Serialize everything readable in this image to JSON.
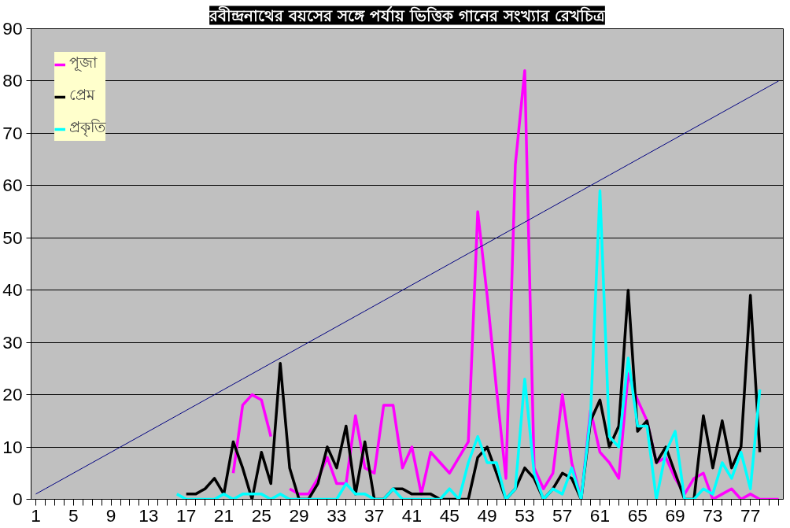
{
  "chart_data": {
    "type": "line",
    "title": "রবীন্দ্রনাথের বয়সের সঙ্গে পর্যায় ভিত্তিক গানের সংখ্যার রেখচিত্র",
    "categories": [
      "1",
      null,
      null,
      null,
      "5",
      null,
      null,
      null,
      "9",
      null,
      null,
      null,
      "13",
      null,
      null,
      null,
      "17",
      null,
      null,
      null,
      "21",
      null,
      null,
      null,
      "25",
      null,
      null,
      null,
      "29",
      null,
      null,
      null,
      "33",
      null,
      null,
      null,
      "37",
      null,
      null,
      null,
      "41",
      null,
      null,
      null,
      "45",
      null,
      null,
      null,
      "49",
      null,
      null,
      null,
      "53",
      null,
      null,
      null,
      "57",
      null,
      null,
      null,
      "61",
      null,
      null,
      null,
      "65",
      null,
      null,
      null,
      "69",
      null,
      null,
      null,
      "73",
      null,
      null,
      null,
      "77",
      null,
      null,
      null
    ],
    "series": [
      {
        "name": "পূজা",
        "color": "#ff00ff",
        "values": [
          null,
          null,
          null,
          null,
          null,
          null,
          null,
          null,
          null,
          null,
          null,
          null,
          null,
          null,
          null,
          null,
          null,
          null,
          null,
          null,
          null,
          5,
          18,
          20,
          19,
          12,
          null,
          2,
          1,
          1,
          4,
          8,
          3,
          3,
          16,
          6,
          5,
          18,
          18,
          6,
          10,
          1,
          9,
          7,
          5,
          8,
          11,
          55,
          39,
          21,
          4,
          64,
          82,
          6,
          2,
          5,
          20,
          7,
          0,
          17,
          9,
          7,
          4,
          24,
          19,
          15,
          7,
          8,
          4,
          1,
          4,
          5,
          0,
          1,
          2,
          0,
          1,
          0,
          0,
          0
        ]
      },
      {
        "name": "প্রেম",
        "color": "#000000",
        "values": [
          null,
          null,
          null,
          null,
          null,
          null,
          null,
          null,
          null,
          null,
          null,
          null,
          null,
          null,
          null,
          null,
          1,
          1,
          2,
          4,
          1,
          11,
          6,
          0,
          9,
          3,
          26,
          6,
          0,
          0,
          3,
          10,
          6,
          14,
          1,
          11,
          0,
          0,
          2,
          2,
          1,
          1,
          1,
          0,
          0,
          0,
          0,
          8,
          10,
          5,
          0,
          2,
          6,
          4,
          0,
          2,
          5,
          4,
          0,
          15,
          19,
          10,
          14,
          40,
          13,
          15,
          7,
          10,
          5,
          0,
          0,
          16,
          6,
          15,
          6,
          10,
          39,
          9,
          null,
          null
        ]
      },
      {
        "name": "প্রকৃতি",
        "color": "#00ffff",
        "values": [
          null,
          null,
          null,
          null,
          null,
          null,
          null,
          null,
          null,
          null,
          null,
          null,
          null,
          null,
          null,
          1,
          0,
          0,
          0,
          0,
          1,
          0,
          1,
          1,
          1,
          0,
          1,
          0,
          0,
          0,
          0,
          0,
          0,
          3,
          1,
          1,
          0,
          0,
          2,
          0,
          0,
          0,
          0,
          0,
          2,
          0,
          7,
          12,
          7,
          7,
          0,
          2,
          23,
          5,
          0,
          2,
          1,
          6,
          0,
          16,
          59,
          12,
          10,
          27,
          14,
          14,
          0,
          9,
          13,
          0,
          0,
          2,
          1,
          7,
          4,
          9,
          2,
          21,
          null,
          null
        ]
      },
      {
        "color": "#000080",
        "values": [
          1,
          2,
          3,
          4,
          5,
          6,
          7,
          8,
          9,
          10,
          11,
          12,
          13,
          14,
          15,
          16,
          17,
          18,
          19,
          20,
          21,
          22,
          23,
          24,
          25,
          26,
          27,
          28,
          29,
          30,
          31,
          32,
          33,
          34,
          35,
          36,
          37,
          38,
          39,
          40,
          41,
          42,
          43,
          44,
          45,
          46,
          47,
          48,
          49,
          50,
          51,
          52,
          53,
          54,
          55,
          56,
          57,
          58,
          59,
          60,
          61,
          62,
          63,
          64,
          65,
          66,
          67,
          68,
          69,
          70,
          71,
          72,
          73,
          74,
          75,
          76,
          77,
          78,
          79,
          80
        ]
      }
    ],
    "ylim": [
      0,
      90
    ],
    "yticks": [
      0,
      10,
      20,
      30,
      40,
      50,
      60,
      70,
      80,
      90
    ],
    "grid": "y",
    "legend": "top left"
  }
}
